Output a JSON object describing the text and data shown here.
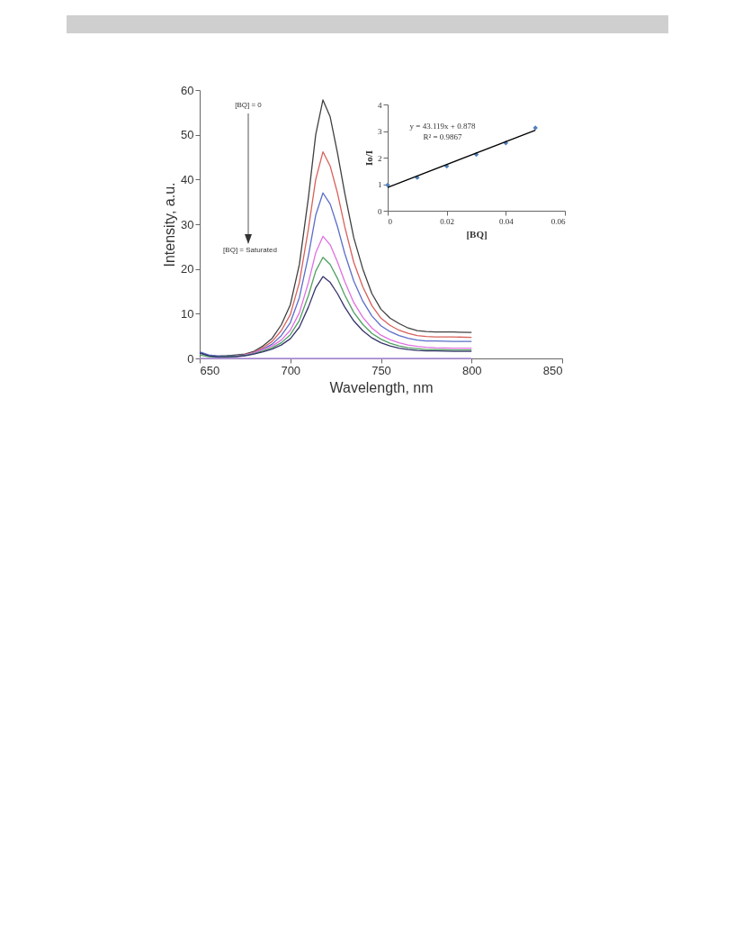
{
  "chart_data": [
    {
      "type": "line",
      "xlabel": "Wavelength, nm",
      "ylabel": "Intensity, a.u.",
      "xlim": [
        650,
        850
      ],
      "xticks": [
        650,
        700,
        750,
        800,
        850
      ],
      "ylim": [
        0,
        60
      ],
      "yticks": [
        0,
        10,
        20,
        30,
        40,
        50,
        60
      ],
      "grid": false,
      "line_style": "solid",
      "annotations": [
        "[BQ] = 0",
        "[BQ] = Saturated"
      ],
      "x": [
        650,
        655,
        660,
        665,
        670,
        675,
        680,
        685,
        690,
        695,
        700,
        705,
        710,
        714,
        718,
        722,
        726,
        730,
        735,
        740,
        745,
        750,
        755,
        760,
        765,
        770,
        775,
        780,
        790,
        800
      ],
      "series": [
        {
          "color": "#404040",
          "values": [
            1.3,
            0.7,
            0.5,
            0.6,
            0.8,
            1.0,
            1.6,
            2.8,
            4.5,
            7.5,
            12,
            21,
            36,
            50,
            57.8,
            54,
            46,
            37,
            27,
            20,
            14.5,
            11,
            9,
            7.8,
            6.8,
            6.2,
            6.0,
            5.9,
            5.9,
            5.8
          ]
        },
        {
          "color": "#d9605a",
          "values": [
            null,
            null,
            null,
            null,
            null,
            0.9,
            1.4,
            2.4,
            3.8,
            6.2,
            9.8,
            17,
            29,
            40,
            46.2,
            43,
            37,
            29.5,
            21.5,
            16,
            11.8,
            9,
            7.4,
            6.3,
            5.6,
            5.1,
            4.9,
            4.8,
            4.8,
            4.7
          ]
        },
        {
          "color": "#5a6ec8",
          "values": [
            1.5,
            0.8,
            0.5,
            0.5,
            0.6,
            0.8,
            1.3,
            2.1,
            3.2,
            5.1,
            8,
            13.6,
            23,
            32,
            37,
            34.5,
            29.5,
            23.5,
            17.3,
            12.8,
            9.5,
            7.3,
            6,
            5.1,
            4.5,
            4.1,
            3.9,
            3.9,
            3.8,
            3.8
          ]
        },
        {
          "color": "#e070e0",
          "values": [
            null,
            null,
            null,
            null,
            0.6,
            0.8,
            1.3,
            2.0,
            2.8,
            4.1,
            6.3,
            10.2,
            17,
            23.6,
            27.3,
            25.4,
            21.6,
            17.2,
            12.5,
            9.2,
            6.8,
            5.2,
            4.2,
            3.5,
            3.0,
            2.7,
            2.5,
            2.4,
            2.3,
            2.3
          ]
        },
        {
          "color": "#50a060",
          "values": [
            0.8,
            0.4,
            0.3,
            0.4,
            0.5,
            0.7,
            1.1,
            1.7,
            2.4,
            3.5,
            5.3,
            8.5,
            14.1,
            19.5,
            22.6,
            21,
            17.9,
            14.2,
            10.3,
            7.6,
            5.6,
            4.3,
            3.4,
            2.8,
            2.4,
            2.2,
            2.0,
            2.0,
            1.9,
            1.9
          ]
        },
        {
          "color": "#34346a",
          "values": [
            1.2,
            0.6,
            0.3,
            0.3,
            0.4,
            0.6,
            1.0,
            1.5,
            2.1,
            3.0,
            4.4,
            7,
            11.5,
            15.8,
            18.3,
            17,
            14.5,
            11.5,
            8.4,
            6.2,
            4.6,
            3.5,
            2.8,
            2.3,
            2.0,
            1.8,
            1.7,
            1.7,
            1.6,
            1.6
          ]
        },
        {
          "color": "#b090e0",
          "x": [
            650,
            800
          ],
          "values": [
            0,
            0
          ]
        }
      ]
    },
    {
      "type": "scatter",
      "xlabel": "[BQ]",
      "ylabel": "Io/I",
      "xlim": [
        0,
        0.06
      ],
      "xticks": [
        0,
        0.02,
        0.04,
        0.06
      ],
      "ylim": [
        0,
        4
      ],
      "yticks": [
        0,
        1,
        2,
        3,
        4
      ],
      "grid": false,
      "annotations": [
        "y = 43.119x + 0.878",
        "R² = 0.9867"
      ],
      "x": [
        0,
        0.01,
        0.02,
        0.03,
        0.04,
        0.05
      ],
      "series": [
        {
          "color": "#4f81bd",
          "marker": "diamond",
          "values": [
            0.97,
            1.25,
            1.68,
            2.12,
            2.55,
            3.12
          ]
        },
        {
          "type": "line",
          "color": "#000000",
          "x": [
            0,
            0.05
          ],
          "values": [
            0.88,
            3.03
          ]
        }
      ]
    }
  ]
}
